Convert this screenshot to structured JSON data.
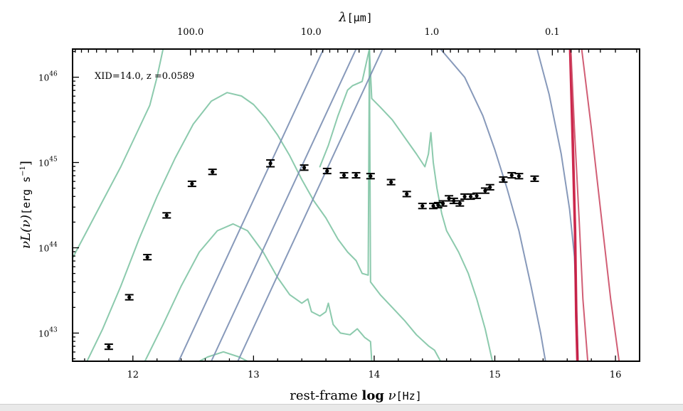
{
  "chart_data": {
    "type": "scatter",
    "annotation": "XID=14.0, z =0.0589",
    "xlabel_prefix": "rest-frame ",
    "xlabel_bold": "log",
    "xlabel_var": " ν",
    "xlabel_unit": "[Hz]",
    "ylabel_main": "νL(ν)",
    "ylabel_unit": "[erg s",
    "ylabel_exp": "−1",
    "ylabel_close": "]",
    "top_axis_label_var": "λ",
    "top_axis_label_unit": "[μm]",
    "xlim": [
      11.5,
      16.2
    ],
    "ylim_log": [
      42.67,
      46.33
    ],
    "yscale": "log",
    "bottom_ticks": [
      {
        "value": 12,
        "label": "12"
      },
      {
        "value": 13,
        "label": "13"
      },
      {
        "value": 14,
        "label": "14"
      },
      {
        "value": 15,
        "label": "15"
      },
      {
        "value": 16,
        "label": "16"
      }
    ],
    "top_ticks": [
      {
        "value": 100.0,
        "label": "100.0"
      },
      {
        "value": 10.0,
        "label": "10.0"
      },
      {
        "value": 1.0,
        "label": "1.0"
      },
      {
        "value": 0.1,
        "label": "0.1"
      }
    ],
    "y_ticks": [
      {
        "exp": 43,
        "label_base": "10",
        "label_exp": "43"
      },
      {
        "exp": 44,
        "label_base": "10",
        "label_exp": "44"
      },
      {
        "exp": 45,
        "label_base": "10",
        "label_exp": "45"
      },
      {
        "exp": 46,
        "label_base": "10",
        "label_exp": "46"
      }
    ],
    "colors": {
      "data": "#000000",
      "green_templates": "#7fc4a4",
      "blue_templates": "#7a8eb2",
      "red_templates": "#c8143c",
      "red_templates_light": "#cc4c66"
    },
    "observed_points": [
      {
        "x": 11.8,
        "y": 42.84,
        "err": 0.03
      },
      {
        "x": 11.97,
        "y": 43.42,
        "err": 0.03
      },
      {
        "x": 12.12,
        "y": 43.89,
        "err": 0.03
      },
      {
        "x": 12.28,
        "y": 44.38,
        "err": 0.03
      },
      {
        "x": 12.49,
        "y": 44.75,
        "err": 0.03
      },
      {
        "x": 12.66,
        "y": 44.89,
        "err": 0.03
      },
      {
        "x": 13.14,
        "y": 44.99,
        "err": 0.04
      },
      {
        "x": 13.42,
        "y": 44.94,
        "err": 0.03
      },
      {
        "x": 13.61,
        "y": 44.9,
        "err": 0.03
      },
      {
        "x": 13.75,
        "y": 44.85,
        "err": 0.03
      },
      {
        "x": 13.85,
        "y": 44.85,
        "err": 0.03
      },
      {
        "x": 13.97,
        "y": 44.84,
        "err": 0.03
      },
      {
        "x": 14.14,
        "y": 44.77,
        "err": 0.03
      },
      {
        "x": 14.27,
        "y": 44.63,
        "err": 0.03
      },
      {
        "x": 14.4,
        "y": 44.49,
        "err": 0.03
      },
      {
        "x": 14.49,
        "y": 44.49,
        "err": 0.03
      },
      {
        "x": 14.53,
        "y": 44.5,
        "err": 0.03
      },
      {
        "x": 14.57,
        "y": 44.52,
        "err": 0.03
      },
      {
        "x": 14.62,
        "y": 44.58,
        "err": 0.03
      },
      {
        "x": 14.66,
        "y": 44.55,
        "err": 0.03
      },
      {
        "x": 14.71,
        "y": 44.52,
        "err": 0.03
      },
      {
        "x": 14.75,
        "y": 44.6,
        "err": 0.03
      },
      {
        "x": 14.8,
        "y": 44.6,
        "err": 0.03
      },
      {
        "x": 14.85,
        "y": 44.61,
        "err": 0.03
      },
      {
        "x": 14.92,
        "y": 44.67,
        "err": 0.03
      },
      {
        "x": 14.96,
        "y": 44.71,
        "err": 0.03
      },
      {
        "x": 15.07,
        "y": 44.8,
        "err": 0.03
      },
      {
        "x": 15.14,
        "y": 44.85,
        "err": 0.03
      },
      {
        "x": 15.2,
        "y": 44.84,
        "err": 0.03
      },
      {
        "x": 15.33,
        "y": 44.81,
        "err": 0.03
      }
    ],
    "series": [
      {
        "color_key": "green_templates",
        "points": [
          [
            11.5,
            43.88
          ],
          [
            11.62,
            44.2
          ],
          [
            11.75,
            44.55
          ],
          [
            11.9,
            44.95
          ],
          [
            12.05,
            45.4
          ],
          [
            12.14,
            45.67
          ],
          [
            12.2,
            46.0
          ],
          [
            12.25,
            46.33
          ]
        ]
      },
      {
        "color_key": "green_templates",
        "points": [
          [
            11.62,
            42.67
          ],
          [
            11.75,
            43.05
          ],
          [
            11.9,
            43.55
          ],
          [
            12.05,
            44.1
          ],
          [
            12.2,
            44.6
          ],
          [
            12.35,
            45.05
          ],
          [
            12.5,
            45.45
          ],
          [
            12.65,
            45.72
          ],
          [
            12.78,
            45.82
          ],
          [
            12.9,
            45.78
          ],
          [
            13.0,
            45.68
          ],
          [
            13.1,
            45.52
          ],
          [
            13.2,
            45.32
          ],
          [
            13.3,
            45.08
          ],
          [
            13.4,
            44.8
          ],
          [
            13.5,
            44.55
          ],
          [
            13.6,
            44.35
          ],
          [
            13.7,
            44.1
          ],
          [
            13.78,
            43.95
          ],
          [
            13.85,
            43.85
          ],
          [
            13.9,
            43.7
          ],
          [
            13.95,
            43.68
          ],
          [
            13.96,
            46.33
          ],
          [
            13.97,
            43.6
          ],
          [
            14.05,
            43.45
          ],
          [
            14.15,
            43.3
          ],
          [
            14.25,
            43.15
          ],
          [
            14.35,
            42.98
          ],
          [
            14.45,
            42.85
          ],
          [
            14.5,
            42.8
          ],
          [
            14.55,
            42.67
          ]
        ]
      },
      {
        "color_key": "green_templates",
        "points": [
          [
            12.1,
            42.67
          ],
          [
            12.25,
            43.1
          ],
          [
            12.4,
            43.55
          ],
          [
            12.55,
            43.95
          ],
          [
            12.7,
            44.2
          ],
          [
            12.83,
            44.28
          ],
          [
            12.95,
            44.2
          ],
          [
            13.08,
            43.95
          ],
          [
            13.2,
            43.65
          ],
          [
            13.3,
            43.45
          ],
          [
            13.4,
            43.35
          ],
          [
            13.45,
            43.4
          ],
          [
            13.48,
            43.25
          ],
          [
            13.55,
            43.2
          ],
          [
            13.6,
            43.25
          ],
          [
            13.62,
            43.35
          ],
          [
            13.66,
            43.1
          ],
          [
            13.72,
            43.0
          ],
          [
            13.8,
            42.98
          ],
          [
            13.86,
            43.05
          ],
          [
            13.92,
            42.95
          ],
          [
            13.97,
            42.9
          ],
          [
            13.98,
            42.67
          ]
        ]
      },
      {
        "color_key": "green_templates",
        "points": [
          [
            12.55,
            42.67
          ],
          [
            12.62,
            42.72
          ],
          [
            12.75,
            42.78
          ],
          [
            12.88,
            42.72
          ],
          [
            12.95,
            42.67
          ]
        ]
      },
      {
        "color_key": "green_templates",
        "points": [
          [
            13.55,
            44.95
          ],
          [
            13.62,
            45.2
          ],
          [
            13.7,
            45.55
          ],
          [
            13.78,
            45.85
          ],
          [
            13.82,
            45.9
          ],
          [
            13.9,
            45.95
          ],
          [
            13.96,
            46.33
          ],
          [
            13.98,
            45.75
          ],
          [
            14.05,
            45.65
          ],
          [
            14.15,
            45.5
          ],
          [
            14.25,
            45.3
          ],
          [
            14.35,
            45.1
          ],
          [
            14.42,
            44.95
          ],
          [
            14.45,
            45.1
          ],
          [
            14.47,
            45.35
          ],
          [
            14.49,
            45.0
          ],
          [
            14.52,
            44.7
          ],
          [
            14.56,
            44.4
          ],
          [
            14.6,
            44.2
          ],
          [
            14.7,
            43.95
          ],
          [
            14.78,
            43.7
          ],
          [
            14.85,
            43.4
          ],
          [
            14.92,
            43.05
          ],
          [
            14.98,
            42.67
          ]
        ]
      },
      {
        "color_key": "blue_templates",
        "points": [
          [
            12.38,
            42.67
          ],
          [
            13.58,
            46.33
          ]
        ]
      },
      {
        "color_key": "blue_templates",
        "points": [
          [
            12.65,
            42.67
          ],
          [
            13.85,
            46.33
          ]
        ]
      },
      {
        "color_key": "blue_templates",
        "points": [
          [
            12.87,
            42.67
          ],
          [
            14.07,
            46.33
          ]
        ]
      },
      {
        "color_key": "blue_templates",
        "points": [
          [
            14.55,
            46.33
          ],
          [
            14.75,
            46.0
          ],
          [
            14.9,
            45.55
          ],
          [
            15.0,
            45.15
          ],
          [
            15.1,
            44.7
          ],
          [
            15.2,
            44.2
          ],
          [
            15.3,
            43.55
          ],
          [
            15.38,
            43.0
          ],
          [
            15.42,
            42.67
          ]
        ]
      },
      {
        "color_key": "blue_templates",
        "points": [
          [
            15.35,
            46.33
          ],
          [
            15.45,
            45.8
          ],
          [
            15.55,
            45.1
          ],
          [
            15.62,
            44.45
          ],
          [
            15.66,
            43.9
          ],
          [
            15.68,
            43.2
          ],
          [
            15.69,
            42.67
          ]
        ]
      },
      {
        "color_key": "red_templates",
        "points": [
          [
            15.62,
            46.33
          ],
          [
            15.64,
            45.3
          ],
          [
            15.66,
            44.2
          ],
          [
            15.67,
            43.2
          ],
          [
            15.68,
            42.67
          ]
        ]
      },
      {
        "color_key": "red_templates",
        "points": [
          [
            15.63,
            46.33
          ],
          [
            15.65,
            45.3
          ],
          [
            15.67,
            44.2
          ],
          [
            15.68,
            43.2
          ],
          [
            15.69,
            42.67
          ]
        ]
      },
      {
        "color_key": "red_templates_light",
        "points": [
          [
            15.63,
            46.33
          ],
          [
            15.66,
            45.4
          ],
          [
            15.7,
            44.3
          ],
          [
            15.73,
            43.4
          ],
          [
            15.77,
            42.67
          ]
        ]
      },
      {
        "color_key": "red_templates_light",
        "points": [
          [
            15.72,
            46.33
          ],
          [
            15.8,
            45.4
          ],
          [
            15.88,
            44.4
          ],
          [
            15.96,
            43.4
          ],
          [
            16.03,
            42.67
          ]
        ]
      }
    ]
  }
}
